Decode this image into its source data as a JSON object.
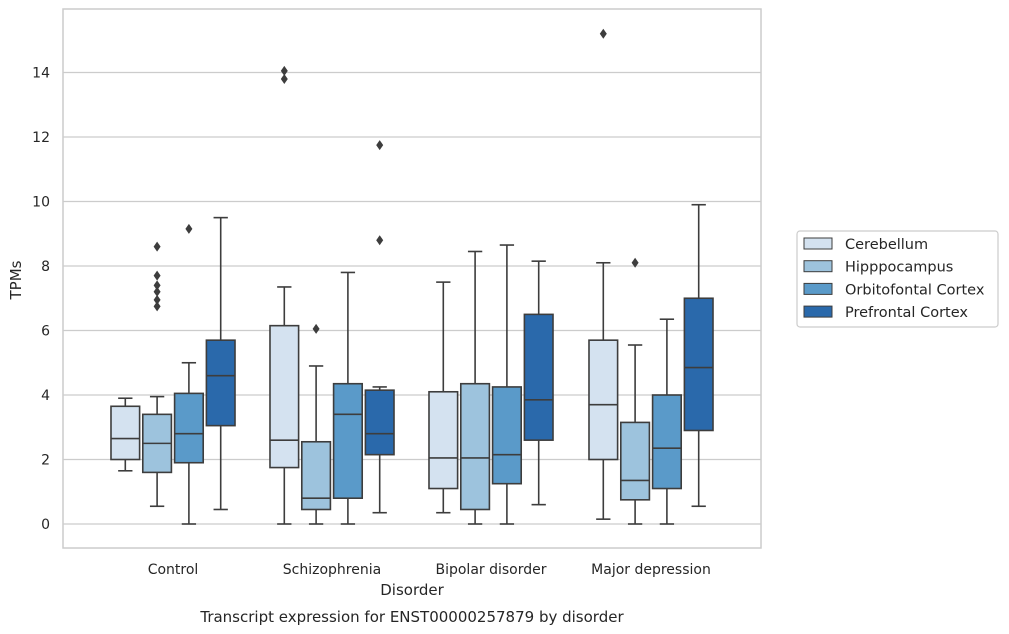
{
  "chart_data": {
    "type": "box",
    "title": "Transcript expression for ENST00000257879 by disorder",
    "xlabel": "Disorder",
    "ylabel": "TPMs",
    "ylim": [
      -0.7,
      16
    ],
    "yticks": [
      0,
      2,
      4,
      6,
      8,
      10,
      12,
      14
    ],
    "grid": "horizontal",
    "legend_position": "right",
    "categories": [
      "Control",
      "Schizophrenia",
      "Bipolar disorder",
      "Major depression"
    ],
    "series": [
      {
        "name": "Cerebellum",
        "color": "#d4e2f0",
        "boxes": [
          {
            "whislo": 1.65,
            "q1": 2.0,
            "med": 2.65,
            "q3": 3.65,
            "whishi": 3.9,
            "fliers": []
          },
          {
            "whislo": 0.0,
            "q1": 1.75,
            "med": 2.6,
            "q3": 6.15,
            "whishi": 7.35,
            "fliers": [
              13.8,
              14.05
            ]
          },
          {
            "whislo": 0.35,
            "q1": 1.1,
            "med": 2.05,
            "q3": 4.1,
            "whishi": 7.5,
            "fliers": []
          },
          {
            "whislo": 0.15,
            "q1": 2.0,
            "med": 3.7,
            "q3": 5.7,
            "whishi": 8.1,
            "fliers": [
              15.2
            ]
          }
        ]
      },
      {
        "name": "Hipppocampus",
        "color": "#9dc3dd",
        "boxes": [
          {
            "whislo": 0.55,
            "q1": 1.6,
            "med": 2.5,
            "q3": 3.4,
            "whishi": 3.95,
            "fliers": [
              6.75,
              6.95,
              7.2,
              7.4,
              7.7,
              8.6
            ]
          },
          {
            "whislo": 0.0,
            "q1": 0.45,
            "med": 0.8,
            "q3": 2.55,
            "whishi": 4.9,
            "fliers": [
              6.05
            ]
          },
          {
            "whislo": 0.0,
            "q1": 0.45,
            "med": 2.05,
            "q3": 4.35,
            "whishi": 8.45,
            "fliers": []
          },
          {
            "whislo": 0.0,
            "q1": 0.75,
            "med": 1.35,
            "q3": 3.15,
            "whishi": 5.55,
            "fliers": [
              8.1
            ]
          }
        ]
      },
      {
        "name": "Orbitofontal Cortex",
        "color": "#5a9ac9",
        "boxes": [
          {
            "whislo": 0.0,
            "q1": 1.9,
            "med": 2.8,
            "q3": 4.05,
            "whishi": 5.0,
            "fliers": [
              9.15
            ]
          },
          {
            "whislo": 0.0,
            "q1": 0.8,
            "med": 3.4,
            "q3": 4.35,
            "whishi": 7.8,
            "fliers": []
          },
          {
            "whislo": 0.0,
            "q1": 1.25,
            "med": 2.15,
            "q3": 4.25,
            "whishi": 8.65,
            "fliers": []
          },
          {
            "whislo": 0.0,
            "q1": 1.1,
            "med": 2.35,
            "q3": 4.0,
            "whishi": 6.35,
            "fliers": []
          }
        ]
      },
      {
        "name": "Prefrontal Cortex",
        "color": "#2a69ab",
        "boxes": [
          {
            "whislo": 0.45,
            "q1": 3.05,
            "med": 4.6,
            "q3": 5.7,
            "whishi": 9.5,
            "fliers": []
          },
          {
            "whislo": 0.35,
            "q1": 2.15,
            "med": 2.8,
            "q3": 4.15,
            "whishi": 4.25,
            "fliers": [
              8.8,
              11.75
            ]
          },
          {
            "whislo": 0.6,
            "q1": 2.6,
            "med": 3.85,
            "q3": 6.5,
            "whishi": 8.15,
            "fliers": []
          },
          {
            "whislo": 0.55,
            "q1": 2.9,
            "med": 4.85,
            "q3": 7.0,
            "whishi": 9.9,
            "fliers": []
          }
        ]
      }
    ]
  }
}
